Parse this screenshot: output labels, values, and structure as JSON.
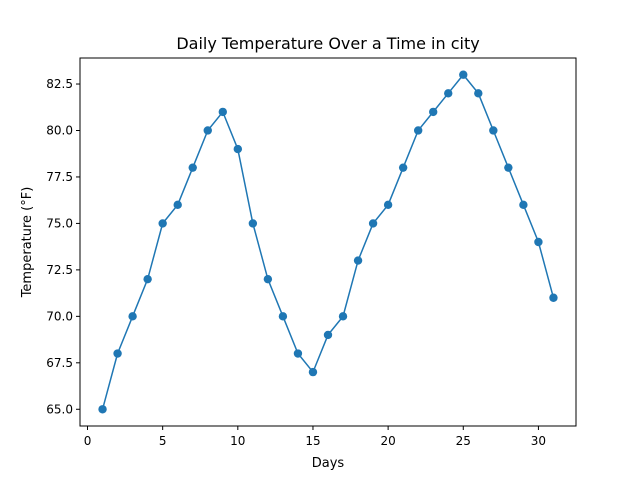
{
  "chart_data": {
    "type": "line",
    "title": "Daily Temperature Over a Time in city",
    "xlabel": "Days",
    "ylabel": "Temperature (°F)",
    "xlim": [
      -0.5,
      32.5
    ],
    "ylim": [
      64.1,
      83.9
    ],
    "xticks": [
      0,
      5,
      10,
      15,
      20,
      25,
      30
    ],
    "xtick_labels": [
      "0",
      "5",
      "10",
      "15",
      "20",
      "25",
      "30"
    ],
    "yticks": [
      65.0,
      67.5,
      70.0,
      72.5,
      75.0,
      77.5,
      80.0,
      82.5
    ],
    "ytick_labels": [
      "65.0",
      "67.5",
      "70.0",
      "72.5",
      "75.0",
      "77.5",
      "80.0",
      "82.5"
    ],
    "grid": false,
    "marker": "circle",
    "color": "#1f77b4",
    "series": [
      {
        "x": [
          1,
          2,
          3,
          4,
          5,
          6,
          7,
          8,
          9,
          10,
          11,
          12,
          13,
          14,
          15,
          16,
          17,
          18,
          19,
          20,
          21,
          22,
          23,
          24,
          25,
          26,
          27,
          28,
          29,
          30,
          31
        ],
        "values": [
          65,
          68,
          70,
          72,
          75,
          76,
          78,
          80,
          81,
          79,
          75,
          72,
          70,
          68,
          67,
          69,
          70,
          73,
          75,
          76,
          78,
          80,
          81,
          82,
          83,
          82,
          80,
          78,
          76,
          74,
          71
        ]
      }
    ]
  }
}
